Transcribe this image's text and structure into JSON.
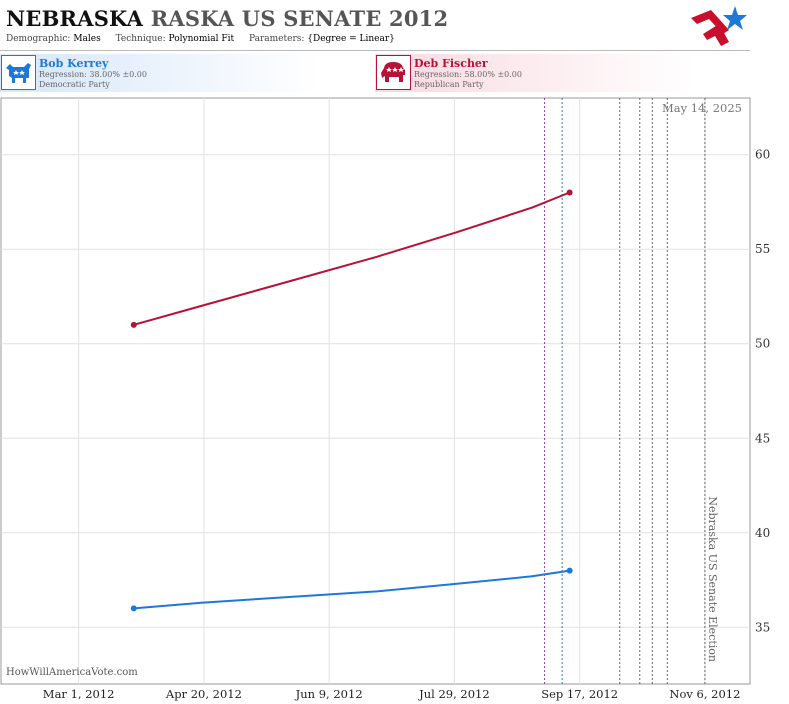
{
  "title": {
    "state": "NEBRASKA",
    "rest": "RASKA US SENATE 2012"
  },
  "subtitle": {
    "demographic_label": "Demographic:",
    "demographic": "Males",
    "technique_label": "Technique:",
    "technique": "Polynomial Fit",
    "parameters_label": "Parameters:",
    "parameters": "{Degree = Linear}"
  },
  "candidates": [
    {
      "name": "Bob Kerrey",
      "regression": "Regression: 38.00% ±0.00",
      "party": "Democratic Party",
      "color": "#1e78d8"
    },
    {
      "name": "Deb Fischer",
      "regression": "Regression: 58.00% ±0.00",
      "party": "Republican Party",
      "color": "#b71235"
    }
  ],
  "watermark": "HowWillAmericaVote.com",
  "chart_data": {
    "type": "line",
    "date_label": "May 14, 2025",
    "x_ticks": [
      "2012-03-01",
      "2012-04-20",
      "2012-06-09",
      "2012-07-29",
      "2012-09-17",
      "2012-11-06"
    ],
    "x_tick_labels": [
      "Mar 1, 2012",
      "Apr 20, 2012",
      "Jun 9, 2012",
      "Jul 29, 2012",
      "Sep 17, 2012",
      "Nov 6, 2012"
    ],
    "xlim": [
      "2012-01-30",
      "2012-11-24"
    ],
    "ylim": [
      32,
      63
    ],
    "y_ticks": [
      35,
      40,
      45,
      50,
      55,
      60
    ],
    "y_axis_position": "right",
    "grid": true,
    "series": [
      {
        "name": "Bob Kerrey",
        "color": "#1e78d8",
        "x": [
          "2012-03-23",
          "2012-04-19",
          "2012-05-24",
          "2012-06-28",
          "2012-07-30",
          "2012-08-29",
          "2012-09-13"
        ],
        "y": [
          36.0,
          36.3,
          36.6,
          36.9,
          37.3,
          37.7,
          38.0
        ]
      },
      {
        "name": "Deb Fischer",
        "color": "#b71235",
        "x": [
          "2012-03-23",
          "2012-04-19",
          "2012-05-24",
          "2012-06-28",
          "2012-07-30",
          "2012-08-29",
          "2012-09-13"
        ],
        "y": [
          51.0,
          52.0,
          53.3,
          54.6,
          55.9,
          57.2,
          58.0
        ]
      }
    ],
    "vlines": [
      {
        "x": "2012-09-03",
        "color": "#8a3ab9"
      },
      {
        "x": "2012-09-10",
        "color": "#2a7f9a"
      },
      {
        "x": "2012-10-03",
        "color": "#666666"
      },
      {
        "x": "2012-10-11",
        "color": "#666666"
      },
      {
        "x": "2012-10-16",
        "color": "#666666"
      },
      {
        "x": "2012-10-22",
        "color": "#666666"
      },
      {
        "x": "2012-11-06",
        "color": "#666666"
      }
    ],
    "election_label": "Nebraska US Senate Election"
  }
}
